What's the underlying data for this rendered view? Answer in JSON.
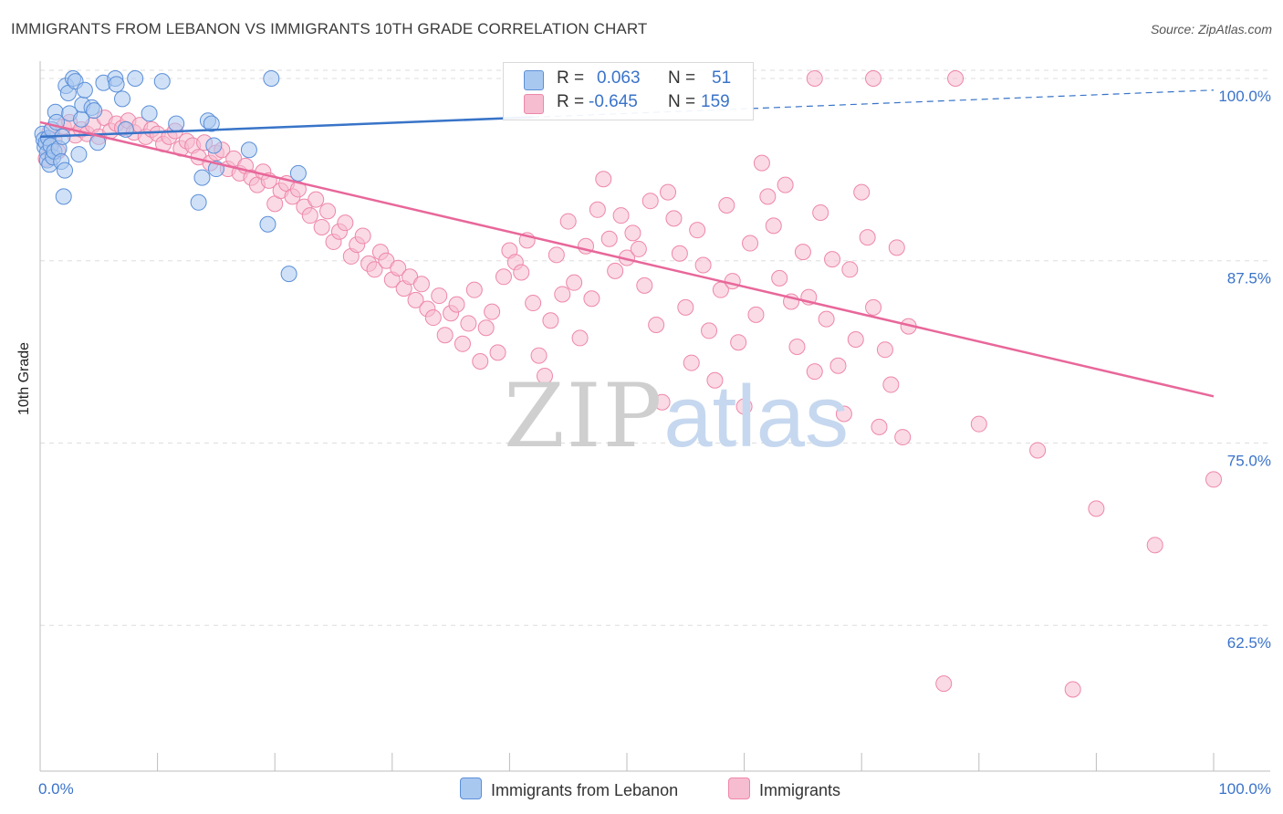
{
  "title": "IMMIGRANTS FROM LEBANON VS IMMIGRANTS 10TH GRADE CORRELATION CHART",
  "source": "Source: ZipAtlas.com",
  "watermark": {
    "zip": "ZIP",
    "atlas": "atlas"
  },
  "colors": {
    "blue_fill": "#a9c8f0",
    "blue_stroke": "#5b8fd8",
    "blue_line": "#3874c8",
    "pink_fill": "#f6bcd0",
    "pink_stroke": "#ee87aa",
    "pink_line": "#e8679a",
    "tick_label": "#3a73c9",
    "grid": "#dedede"
  },
  "legend": {
    "rows": [
      {
        "r_label": "R =",
        "r_value": "0.063",
        "n_label": "N =",
        "n_value": "51"
      },
      {
        "r_label": "R =",
        "r_value": "-0.645",
        "n_label": "N =",
        "n_value": "159"
      }
    ]
  },
  "bottom_legend": {
    "series1": "Immigrants from Lebanon",
    "series2": "Immigrants"
  },
  "chart_data": {
    "type": "scatter",
    "title": "IMMIGRANTS FROM LEBANON VS IMMIGRANTS 10TH GRADE CORRELATION CHART",
    "xlabel": "",
    "ylabel": "10th Grade",
    "xlim": [
      0,
      100
    ],
    "ylim": [
      52.5,
      101.5
    ],
    "x_tick_labels": [
      "0.0%",
      "100.0%"
    ],
    "y_ticks": [
      100.0,
      87.5,
      75.0,
      62.5
    ],
    "y_tick_labels": [
      "100.0%",
      "87.5%",
      "75.0%",
      "62.5%"
    ],
    "grid": true,
    "legend_placement": "bottom",
    "series": [
      {
        "name": "Immigrants from Lebanon",
        "r": 0.063,
        "n": 51,
        "trend": {
          "x": [
            0,
            100
          ],
          "y": [
            96.0,
            99.2
          ],
          "solid_until": 42
        },
        "points": [
          [
            0.2,
            96.2
          ],
          [
            0.3,
            95.8
          ],
          [
            0.4,
            95.3
          ],
          [
            0.5,
            95.6
          ],
          [
            0.6,
            94.9
          ],
          [
            0.6,
            94.4
          ],
          [
            0.7,
            95.9
          ],
          [
            0.8,
            94.1
          ],
          [
            0.9,
            95.4
          ],
          [
            1.0,
            96.5
          ],
          [
            1.1,
            94.6
          ],
          [
            1.2,
            95.0
          ],
          [
            1.3,
            97.7
          ],
          [
            1.4,
            97.0
          ],
          [
            1.6,
            95.2
          ],
          [
            1.8,
            94.3
          ],
          [
            1.9,
            96.0
          ],
          [
            2.0,
            91.9
          ],
          [
            2.1,
            93.7
          ],
          [
            2.2,
            99.5
          ],
          [
            2.4,
            99.0
          ],
          [
            2.5,
            97.6
          ],
          [
            2.8,
            100.0
          ],
          [
            3.0,
            99.8
          ],
          [
            3.3,
            94.8
          ],
          [
            3.5,
            97.2
          ],
          [
            3.6,
            98.2
          ],
          [
            3.8,
            99.2
          ],
          [
            4.4,
            98.0
          ],
          [
            4.6,
            97.8
          ],
          [
            4.9,
            95.6
          ],
          [
            5.4,
            99.7
          ],
          [
            6.4,
            100.0
          ],
          [
            6.5,
            99.6
          ],
          [
            7.0,
            98.6
          ],
          [
            7.3,
            96.5
          ],
          [
            8.1,
            100.0
          ],
          [
            9.3,
            97.6
          ],
          [
            10.4,
            99.8
          ],
          [
            11.6,
            96.9
          ],
          [
            13.5,
            91.5
          ],
          [
            13.8,
            93.2
          ],
          [
            14.3,
            97.1
          ],
          [
            14.6,
            96.9
          ],
          [
            14.8,
            95.4
          ],
          [
            15.0,
            93.8
          ],
          [
            17.8,
            95.1
          ],
          [
            19.4,
            90.0
          ],
          [
            19.7,
            100.0
          ],
          [
            21.2,
            86.6
          ],
          [
            22.0,
            93.5
          ]
        ]
      },
      {
        "name": "Immigrants",
        "r": -0.645,
        "n": 159,
        "trend": {
          "x": [
            0,
            100
          ],
          "y": [
            97.0,
            78.2
          ]
        },
        "points": [
          [
            0.5,
            94.5
          ],
          [
            0.8,
            96.3
          ],
          [
            1.2,
            95.8
          ],
          [
            1.5,
            95.0
          ],
          [
            2.0,
            96.7
          ],
          [
            2.5,
            97.0
          ],
          [
            3.0,
            96.1
          ],
          [
            3.5,
            96.5
          ],
          [
            4.0,
            96.2
          ],
          [
            4.5,
            96.8
          ],
          [
            5.0,
            96.0
          ],
          [
            5.5,
            97.3
          ],
          [
            6.0,
            96.4
          ],
          [
            6.5,
            96.9
          ],
          [
            7.0,
            96.6
          ],
          [
            7.5,
            97.1
          ],
          [
            8.0,
            96.3
          ],
          [
            8.5,
            96.8
          ],
          [
            9.0,
            96.0
          ],
          [
            9.5,
            96.5
          ],
          [
            10.0,
            96.2
          ],
          [
            10.5,
            95.5
          ],
          [
            11.0,
            96.0
          ],
          [
            11.5,
            96.4
          ],
          [
            12.0,
            95.2
          ],
          [
            12.5,
            95.7
          ],
          [
            13.0,
            95.4
          ],
          [
            13.5,
            94.6
          ],
          [
            14.0,
            95.6
          ],
          [
            14.5,
            94.2
          ],
          [
            15.0,
            94.9
          ],
          [
            15.5,
            95.1
          ],
          [
            16.0,
            93.8
          ],
          [
            16.5,
            94.5
          ],
          [
            17.0,
            93.5
          ],
          [
            17.5,
            94.0
          ],
          [
            18.0,
            93.2
          ],
          [
            18.5,
            92.7
          ],
          [
            19.0,
            93.6
          ],
          [
            19.5,
            93.0
          ],
          [
            20.0,
            91.4
          ],
          [
            20.5,
            92.3
          ],
          [
            21.0,
            92.8
          ],
          [
            21.5,
            91.9
          ],
          [
            22.0,
            92.4
          ],
          [
            22.5,
            91.2
          ],
          [
            23.0,
            90.6
          ],
          [
            23.5,
            91.7
          ],
          [
            24.0,
            89.8
          ],
          [
            24.5,
            90.9
          ],
          [
            25.0,
            88.8
          ],
          [
            25.5,
            89.5
          ],
          [
            26.0,
            90.1
          ],
          [
            26.5,
            87.8
          ],
          [
            27.0,
            88.6
          ],
          [
            27.5,
            89.2
          ],
          [
            28.0,
            87.3
          ],
          [
            28.5,
            86.9
          ],
          [
            29.0,
            88.1
          ],
          [
            29.5,
            87.5
          ],
          [
            30.0,
            86.2
          ],
          [
            30.5,
            87.0
          ],
          [
            31.0,
            85.6
          ],
          [
            31.5,
            86.4
          ],
          [
            32.0,
            84.8
          ],
          [
            32.5,
            85.9
          ],
          [
            33.0,
            84.2
          ],
          [
            33.5,
            83.6
          ],
          [
            34.0,
            85.1
          ],
          [
            34.5,
            82.4
          ],
          [
            35.0,
            83.9
          ],
          [
            35.5,
            84.5
          ],
          [
            36.0,
            81.8
          ],
          [
            36.5,
            83.2
          ],
          [
            37.0,
            85.5
          ],
          [
            37.5,
            80.6
          ],
          [
            38.0,
            82.9
          ],
          [
            38.5,
            84.0
          ],
          [
            39.0,
            81.2
          ],
          [
            39.5,
            86.4
          ],
          [
            40.0,
            88.2
          ],
          [
            40.5,
            87.4
          ],
          [
            41.0,
            86.7
          ],
          [
            41.5,
            88.9
          ],
          [
            42.0,
            84.6
          ],
          [
            42.5,
            81.0
          ],
          [
            43.0,
            79.6
          ],
          [
            43.5,
            83.4
          ],
          [
            44.0,
            87.9
          ],
          [
            44.5,
            85.2
          ],
          [
            45.0,
            90.2
          ],
          [
            45.5,
            86.0
          ],
          [
            46.0,
            82.2
          ],
          [
            46.5,
            88.5
          ],
          [
            47.0,
            84.9
          ],
          [
            47.5,
            91.0
          ],
          [
            48.0,
            93.1
          ],
          [
            48.5,
            89.0
          ],
          [
            49.0,
            86.8
          ],
          [
            49.5,
            90.6
          ],
          [
            50.0,
            87.7
          ],
          [
            50.5,
            89.4
          ],
          [
            51.0,
            88.3
          ],
          [
            51.5,
            85.8
          ],
          [
            52.0,
            91.6
          ],
          [
            52.5,
            83.1
          ],
          [
            53.0,
            77.8
          ],
          [
            53.5,
            92.2
          ],
          [
            54.0,
            90.4
          ],
          [
            54.5,
            88.0
          ],
          [
            55.0,
            84.3
          ],
          [
            55.5,
            80.5
          ],
          [
            56.0,
            89.6
          ],
          [
            56.5,
            87.2
          ],
          [
            57.0,
            82.7
          ],
          [
            57.5,
            79.3
          ],
          [
            58.0,
            85.5
          ],
          [
            58.5,
            91.3
          ],
          [
            59.0,
            86.1
          ],
          [
            59.5,
            81.9
          ],
          [
            60.0,
            77.5
          ],
          [
            60.5,
            88.7
          ],
          [
            61.0,
            83.8
          ],
          [
            61.5,
            94.2
          ],
          [
            62.0,
            91.9
          ],
          [
            62.5,
            89.9
          ],
          [
            63.0,
            86.3
          ],
          [
            63.5,
            92.7
          ],
          [
            64.0,
            84.7
          ],
          [
            64.5,
            81.6
          ],
          [
            65.0,
            88.1
          ],
          [
            65.5,
            85.0
          ],
          [
            66.0,
            79.9
          ],
          [
            66.5,
            90.8
          ],
          [
            67.0,
            83.5
          ],
          [
            67.5,
            87.6
          ],
          [
            68.0,
            80.3
          ],
          [
            68.5,
            77.0
          ],
          [
            69.0,
            86.9
          ],
          [
            69.5,
            82.1
          ],
          [
            70.0,
            92.2
          ],
          [
            70.5,
            89.1
          ],
          [
            71.0,
            84.3
          ],
          [
            71.5,
            76.1
          ],
          [
            72.0,
            81.4
          ],
          [
            72.5,
            79.0
          ],
          [
            73.0,
            88.4
          ],
          [
            73.5,
            75.4
          ],
          [
            74.0,
            83.0
          ],
          [
            80.0,
            76.3
          ],
          [
            85.0,
            74.5
          ],
          [
            90.0,
            70.5
          ],
          [
            95.0,
            68.0
          ],
          [
            100.0,
            72.5
          ],
          [
            77.0,
            58.5
          ],
          [
            88.0,
            58.1
          ],
          [
            66.0,
            100.0
          ],
          [
            71.0,
            100.0
          ],
          [
            78.0,
            100.0
          ]
        ]
      }
    ]
  }
}
